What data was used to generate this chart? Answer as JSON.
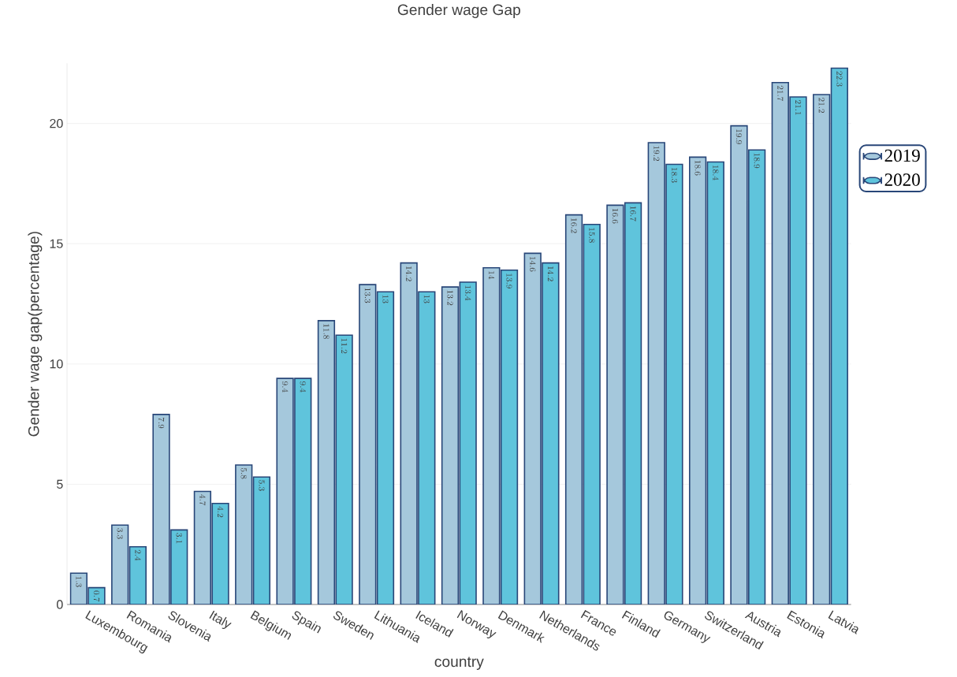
{
  "chart_data": {
    "type": "bar",
    "title": "Gender wage Gap",
    "xlabel": "country",
    "ylabel": "Gender wage gap(percentage)",
    "categories": [
      "Luxembourg",
      "Romania",
      "Slovenia",
      "Italy",
      "Belgium",
      "Spain",
      "Sweden",
      "Lithuania",
      "Iceland",
      "Norway",
      "Denmark",
      "Netherlands",
      "France",
      "Finland",
      "Germany",
      "Switzerland",
      "Austria",
      "Estonia",
      "Latvia"
    ],
    "series": [
      {
        "name": "2019",
        "color": "#a5c8dc",
        "values": [
          1.3,
          3.3,
          7.9,
          4.7,
          5.8,
          9.4,
          11.8,
          13.3,
          14.2,
          13.2,
          14,
          14.6,
          16.2,
          16.6,
          19.2,
          18.6,
          19.9,
          21.7,
          21.2
        ]
      },
      {
        "name": "2020",
        "color": "#5fc4dc",
        "values": [
          0.7,
          2.4,
          3.1,
          4.2,
          5.3,
          9.4,
          11.2,
          13,
          13,
          13.4,
          13.9,
          14.2,
          15.8,
          16.7,
          18.3,
          18.4,
          18.9,
          21.1,
          22.3
        ]
      }
    ],
    "ylim": [
      0,
      22.5
    ],
    "yticks": [
      0,
      5,
      10,
      15,
      20
    ],
    "grid": "y",
    "legend": "right",
    "data_labels": true
  }
}
